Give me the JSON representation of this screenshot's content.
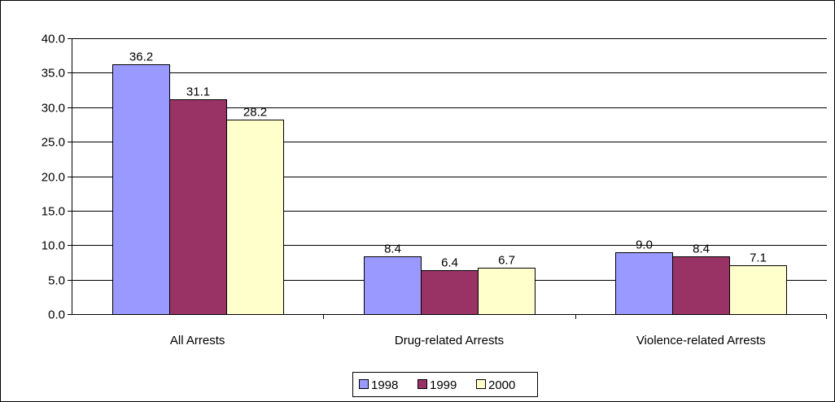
{
  "chart_data": {
    "type": "bar",
    "categories": [
      "All Arrests",
      "Drug-related Arrests",
      "Violence-related Arrests"
    ],
    "series": [
      {
        "name": "1998",
        "values": [
          36.2,
          8.4,
          9.0
        ],
        "color": "#9999FF"
      },
      {
        "name": "1999",
        "values": [
          31.1,
          6.4,
          8.4
        ],
        "color": "#993366"
      },
      {
        "name": "2000",
        "values": [
          28.2,
          6.7,
          7.1
        ],
        "color": "#FFFFCC"
      }
    ],
    "data_labels": [
      [
        "36.2",
        "8.4",
        "9.0"
      ],
      [
        "31.1",
        "6.4",
        "8.4"
      ],
      [
        "28.2",
        "6.7",
        "7.1"
      ]
    ],
    "title": "",
    "xlabel": "",
    "ylabel": "",
    "ylim": [
      0,
      40
    ],
    "yticks": [
      0,
      5,
      10,
      15,
      20,
      25,
      30,
      35,
      40
    ],
    "ytick_labels": [
      "0.0",
      "5.0",
      "10.0",
      "15.0",
      "20.0",
      "25.0",
      "30.0",
      "35.0",
      "40.0"
    ],
    "grid": true,
    "legend_position": "bottom"
  }
}
